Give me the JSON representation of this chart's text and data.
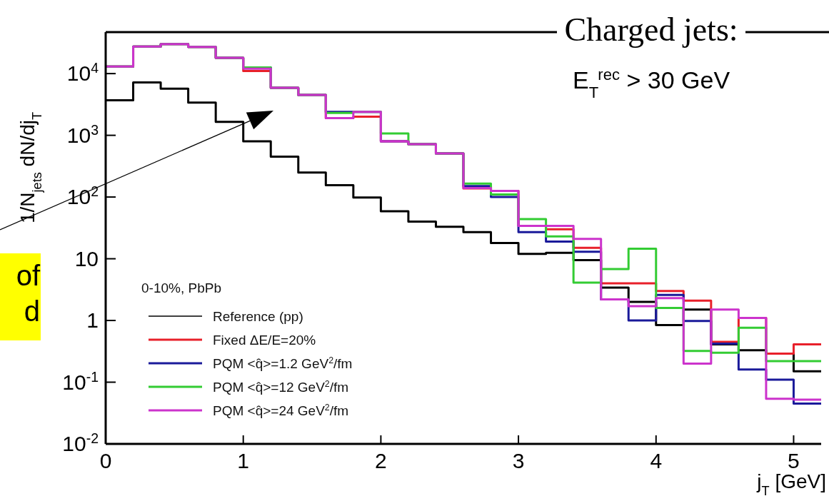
{
  "chart_data": {
    "type": "histogram",
    "xlabel": "j$_{T}$ [GeV]",
    "ylabel": "1/N$_{jets}$ dN/dj$_{T}$",
    "legend_title": "0-10%, PbPb",
    "annotations": [
      "Charged jets:",
      "E$_{T}$$^{rec}$ > 30 GeV",
      "of\nd"
    ],
    "bins": [
      0,
      0.2,
      0.4,
      0.6,
      0.8,
      1.0,
      1.2,
      1.4,
      1.6,
      1.8,
      2.0,
      2.2,
      2.4,
      2.6,
      2.8,
      3.0,
      3.2,
      3.4,
      3.6,
      3.8,
      4.0,
      4.2,
      4.4,
      4.6,
      4.8,
      5.0,
      5.2
    ],
    "series": [
      {
        "name": "Reference (pp)",
        "color": "#000000",
        "values": [
          3700,
          7200,
          5700,
          3400,
          1650,
          800,
          450,
          250,
          155,
          98,
          59,
          40,
          33,
          27,
          18,
          12,
          12.5,
          9.5,
          3.4,
          2.0,
          0.84,
          1.5,
          0.41,
          0.33,
          0.29,
          0.15
        ]
      },
      {
        "name": "Fixed ΔE/E=20%",
        "color": "#e8202a",
        "values": [
          13000,
          27500,
          30000,
          27000,
          18000,
          11000,
          5900,
          4500,
          1900,
          2000,
          800,
          720,
          510,
          138,
          126,
          34,
          30,
          15,
          4.0,
          4.0,
          3.0,
          2.1,
          0.45,
          1.1,
          0.29,
          0.41
        ]
      },
      {
        "name": "PQM <q̂>=1.2 GeV$^{2}$/fm",
        "color": "#1a1a9a",
        "values": [
          13000,
          27500,
          30000,
          27000,
          18000,
          12600,
          5900,
          4500,
          2400,
          2400,
          800,
          720,
          510,
          150,
          100,
          27,
          19,
          13,
          2.2,
          1.0,
          2.6,
          0.98,
          0.42,
          0.16,
          0.11,
          0.045
        ]
      },
      {
        "name": "PQM <q̂>=12 GeV$^{2}$/fm",
        "color": "#33cc33",
        "values": [
          13000,
          27500,
          30000,
          27000,
          18000,
          12600,
          5900,
          4500,
          2300,
          2400,
          1070,
          720,
          510,
          165,
          110,
          44,
          23,
          4.1,
          6.8,
          14.5,
          1.6,
          0.32,
          0.3,
          0.76,
          0.22,
          0.22
        ]
      },
      {
        "name": "PQM <q̂>=24 GeV$^{2}$/fm",
        "color": "#cc33cc",
        "values": [
          13000,
          27500,
          30000,
          27000,
          18000,
          12000,
          5900,
          4500,
          1900,
          2400,
          800,
          720,
          510,
          140,
          126,
          34,
          34,
          21,
          2.2,
          1.7,
          2.3,
          0.2,
          1.5,
          1.1,
          0.054,
          0.052
        ]
      }
    ],
    "xlim": [
      0,
      5.2
    ],
    "xticks": [
      0,
      1,
      2,
      3,
      4,
      5
    ],
    "ylim": [
      0.01,
      47000
    ],
    "log": true,
    "yticks": [
      {
        "value": 0.01,
        "label": "10$^{-2}$"
      },
      {
        "value": 0.1,
        "label": "10$^{-1}$"
      },
      1,
      10,
      {
        "value": 100,
        "label": "10$^{2}$"
      },
      {
        "value": 1000,
        "label": "10$^{3}$"
      },
      {
        "value": 10000,
        "label": "10$^{4}$"
      }
    ],
    "legend": "bottom left"
  }
}
